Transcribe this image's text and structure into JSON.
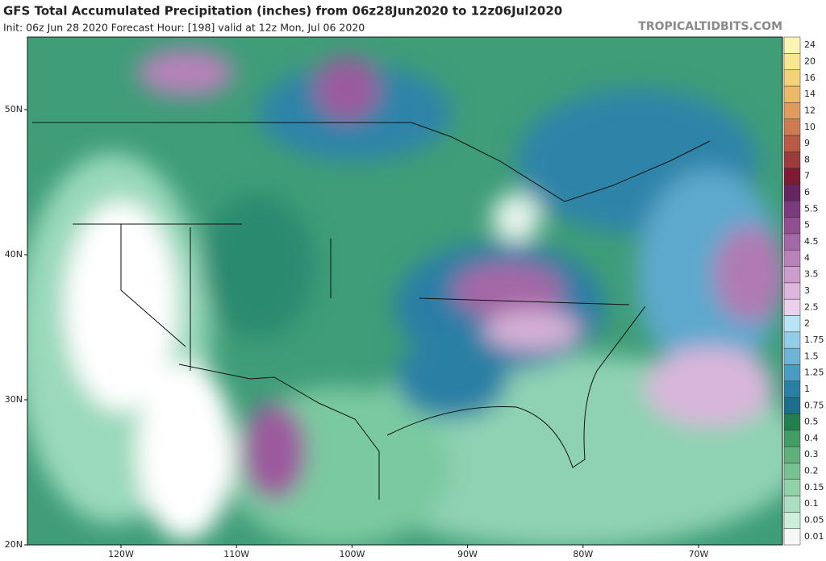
{
  "header": {
    "title": "GFS Total Accumulated Precipitation (inches) from 06z28Jun2020 to 12z06Jul2020",
    "subtitle": "Init: 06z Jun 28 2020   Forecast Hour: [198]   valid at 12z Mon, Jul 06 2020",
    "watermark": "TROPICALTIDBITS.COM"
  },
  "map": {
    "lat_ticks": [
      {
        "value": 50,
        "label": "50N"
      },
      {
        "value": 40,
        "label": "40N"
      },
      {
        "value": 30,
        "label": "30N"
      },
      {
        "value": 20,
        "label": "20N"
      }
    ],
    "lon_ticks": [
      {
        "value": -120,
        "label": "120W"
      },
      {
        "value": -110,
        "label": "110W"
      },
      {
        "value": -100,
        "label": "100W"
      },
      {
        "value": -90,
        "label": "90W"
      },
      {
        "value": -80,
        "label": "80W"
      },
      {
        "value": -70,
        "label": "70W"
      }
    ]
  },
  "colorbar": {
    "levels": [
      0.01,
      0.05,
      0.1,
      0.15,
      0.2,
      0.3,
      0.4,
      0.5,
      0.75,
      1,
      1.25,
      1.5,
      1.75,
      2,
      2.5,
      3,
      3.5,
      4,
      4.5,
      5,
      5.5,
      6,
      7,
      8,
      9,
      10,
      12,
      14,
      16,
      20,
      24
    ],
    "colors": [
      "#f7f7f7",
      "#cdeedb",
      "#acdfc2",
      "#93d1ab",
      "#78c192",
      "#5eb07c",
      "#419d66",
      "#22804e",
      "#1b6f8a",
      "#2a80a4",
      "#4a9cc2",
      "#6db4d7",
      "#92cce8",
      "#b8e4f6",
      "#ead0ea",
      "#dcb6dc",
      "#cc9ccc",
      "#b982ba",
      "#a468a6",
      "#904f92",
      "#7b3a7e",
      "#662460",
      "#7c1b33",
      "#9b3b3b",
      "#b85b46",
      "#cf7b52",
      "#e09b5d",
      "#ecb968",
      "#f4d27a",
      "#f8e692",
      "#fbf4b4"
    ]
  }
}
